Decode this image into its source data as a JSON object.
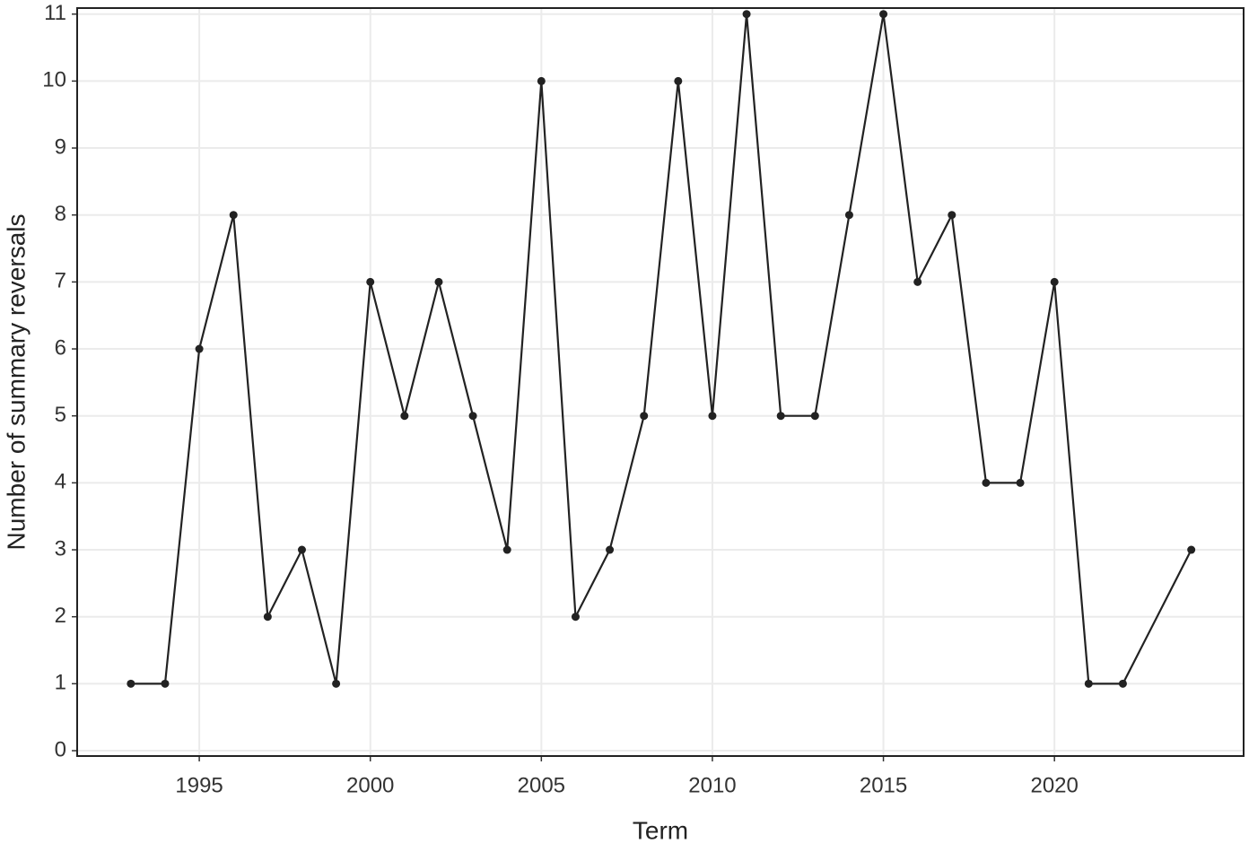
{
  "chart_data": {
    "type": "line",
    "x_label": "Term",
    "y_label": "Number of summary reversals",
    "x": [
      1993,
      1994,
      1995,
      1996,
      1997,
      1998,
      1999,
      2000,
      2001,
      2002,
      2003,
      2004,
      2005,
      2006,
      2007,
      2008,
      2009,
      2010,
      2011,
      2012,
      2013,
      2014,
      2015,
      2016,
      2017,
      2018,
      2019,
      2020,
      2021,
      2022,
      2024
    ],
    "values": [
      1,
      1,
      6,
      8,
      2,
      3,
      1,
      7,
      5,
      7,
      5,
      3,
      10,
      2,
      3,
      5,
      10,
      5,
      11,
      5,
      5,
      8,
      11,
      7,
      8,
      4,
      4,
      7,
      1,
      1,
      3
    ],
    "color": "#222222",
    "xlim": [
      1991.43,
      2025.53
    ],
    "ylim": [
      -0.08,
      11.09
    ],
    "xticks": [
      1995,
      2000,
      2005,
      2010,
      2015,
      2020
    ],
    "yticks": [
      0,
      1,
      2,
      3,
      4,
      5,
      6,
      7,
      8,
      9,
      10,
      11
    ],
    "grid": true
  }
}
